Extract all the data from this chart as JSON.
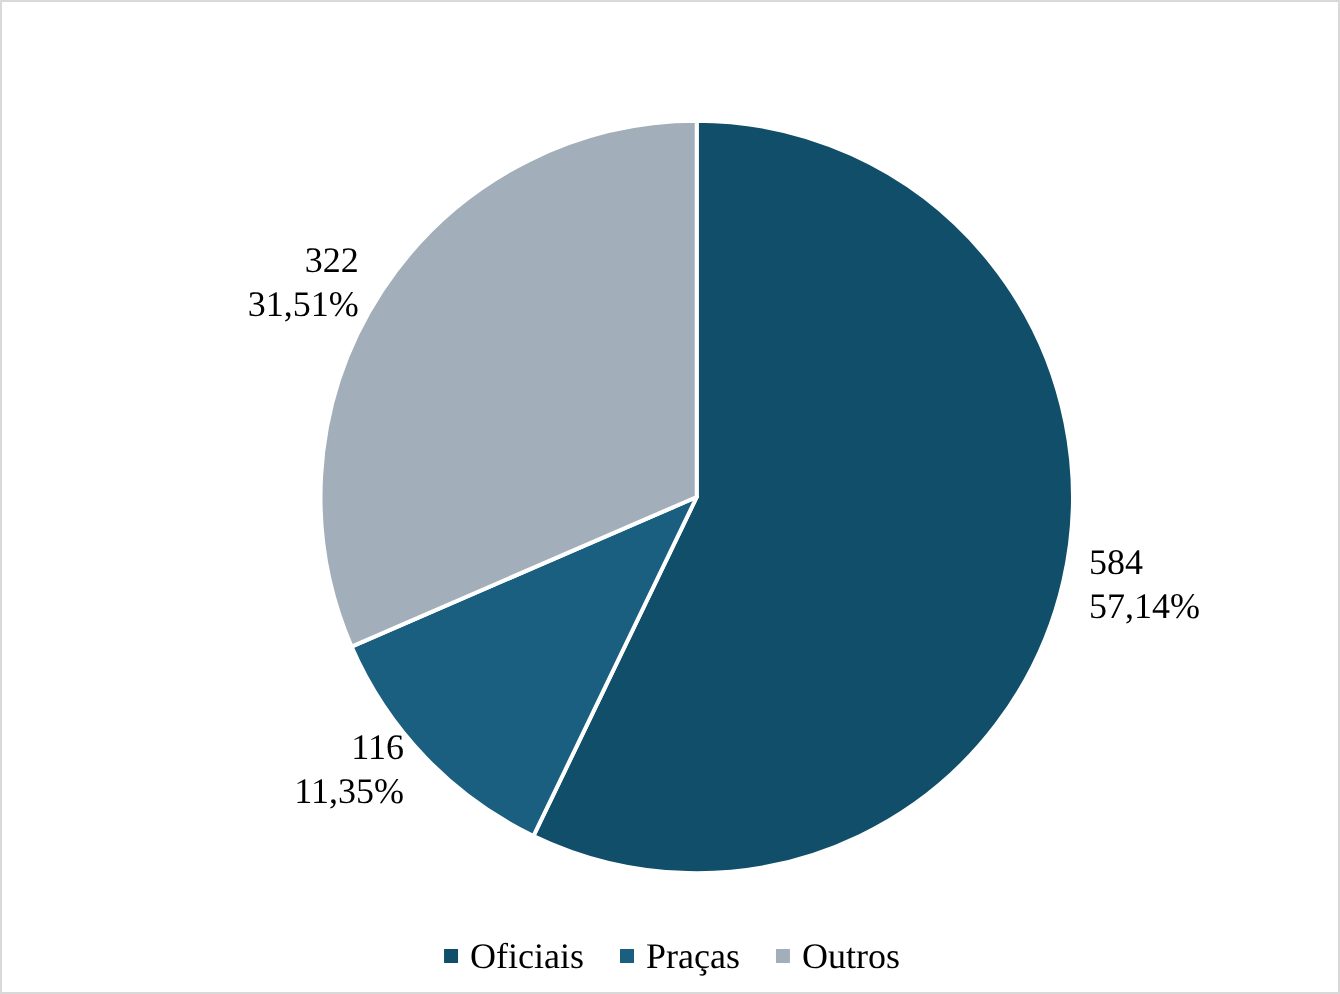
{
  "chart_data": {
    "type": "pie",
    "categories": [
      "Oficiais",
      "Praças",
      "Outros"
    ],
    "values": [
      584,
      116,
      322
    ],
    "colors": [
      "#104e6a",
      "#1a5e80",
      "#a2afbb"
    ],
    "value_labels": [
      "584\n57,14%",
      "116\n11,35%",
      "322\n31,51%"
    ],
    "legend": "bottom"
  }
}
